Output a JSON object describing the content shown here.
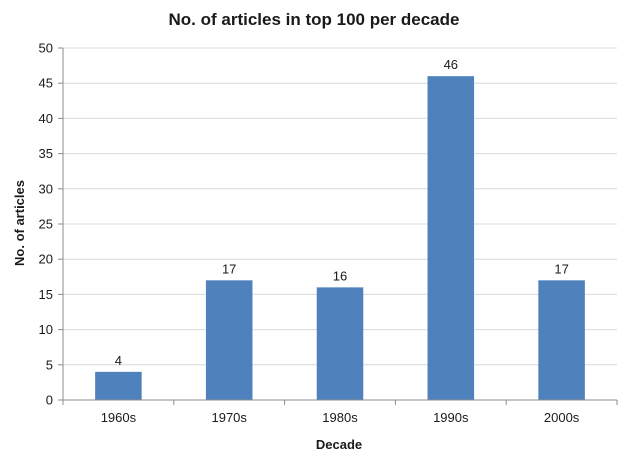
{
  "chart_data": {
    "type": "bar",
    "title": "No. of articles in top 100 per decade",
    "xlabel": "Decade",
    "ylabel": "No. of articles",
    "categories": [
      "1960s",
      "1970s",
      "1980s",
      "1990s",
      "2000s"
    ],
    "values": [
      4,
      17,
      16,
      46,
      17
    ],
    "ylim": [
      0,
      50
    ],
    "yticks": [
      0,
      5,
      10,
      15,
      20,
      25,
      30,
      35,
      40,
      45,
      50
    ],
    "grid": true,
    "legend": "none",
    "bar_color": "#4f81bd",
    "grid_color": "#d9d9d9",
    "axis_color": "#8c8c8c"
  }
}
